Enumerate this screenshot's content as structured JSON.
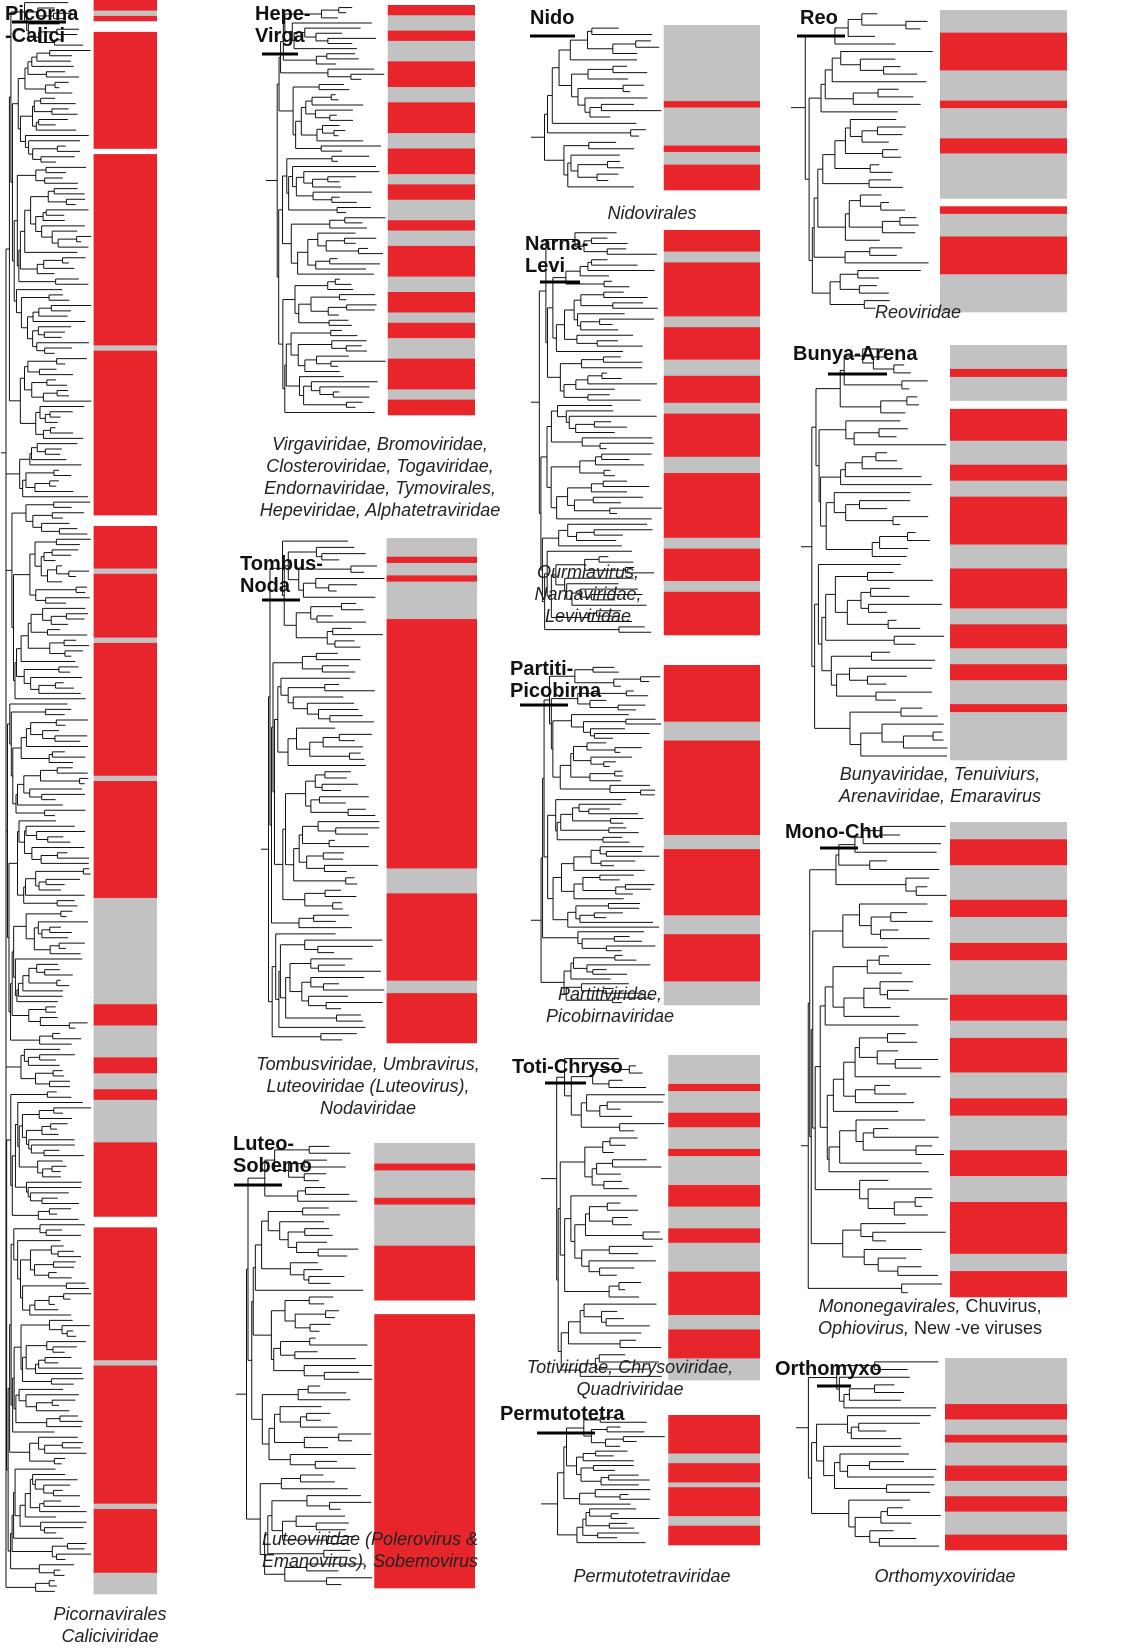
{
  "colors": {
    "red": "#e8252b",
    "gray": "#c2c2c2",
    "white": "#ffffff",
    "line": "#111111"
  },
  "panels": [
    {
      "id": "picorna",
      "title": [
        "Picorna",
        "-Calici"
      ],
      "caption": [
        [
          "Picornavirales"
        ],
        [
          "Caliciviridae"
        ]
      ],
      "pattern": [
        [
          "r",
          2
        ],
        [
          "g",
          1
        ],
        [
          "r",
          1
        ],
        [
          "w",
          2
        ],
        [
          "r",
          22
        ],
        [
          "w",
          1
        ],
        [
          "r",
          36
        ],
        [
          "g",
          1
        ],
        [
          "r",
          31
        ],
        [
          "w",
          2
        ],
        [
          "r",
          8
        ],
        [
          "g",
          1
        ],
        [
          "r",
          12
        ],
        [
          "g",
          1
        ],
        [
          "r",
          25
        ],
        [
          "g",
          1
        ],
        [
          "r",
          22
        ],
        [
          "g",
          20
        ],
        [
          "r",
          4
        ],
        [
          "g",
          6
        ],
        [
          "r",
          3
        ],
        [
          "g",
          3
        ],
        [
          "r",
          2
        ],
        [
          "g",
          8
        ],
        [
          "r",
          14
        ],
        [
          "w",
          2
        ],
        [
          "r",
          25
        ],
        [
          "g",
          1
        ],
        [
          "r",
          26
        ],
        [
          "g",
          1
        ],
        [
          "r",
          12
        ],
        [
          "g",
          4
        ]
      ]
    },
    {
      "id": "hepe",
      "title": [
        "Hepe-",
        "Virga"
      ],
      "caption": [
        [
          "Virgaviridae, Bromoviridae,"
        ],
        [
          "Closteroviridae, Togaviridae,"
        ],
        [
          "Endornaviridae, Tymovirales,"
        ],
        [
          "Hepeviridae, Alphatetraviridae"
        ]
      ],
      "pattern": [
        [
          "r",
          2
        ],
        [
          "g",
          3
        ],
        [
          "r",
          2
        ],
        [
          "g",
          4
        ],
        [
          "r",
          5
        ],
        [
          "g",
          3
        ],
        [
          "r",
          6
        ],
        [
          "g",
          3
        ],
        [
          "r",
          5
        ],
        [
          "g",
          2
        ],
        [
          "r",
          3
        ],
        [
          "g",
          4
        ],
        [
          "r",
          2
        ],
        [
          "g",
          3
        ],
        [
          "r",
          6
        ],
        [
          "g",
          3
        ],
        [
          "r",
          4
        ],
        [
          "g",
          2
        ],
        [
          "r",
          3
        ],
        [
          "g",
          4
        ],
        [
          "r",
          6
        ],
        [
          "g",
          2
        ],
        [
          "r",
          3
        ]
      ]
    },
    {
      "id": "tombus",
      "title": [
        "Tombus-",
        "Noda"
      ],
      "caption": [
        [
          "Tombusviridae, Umbravirus,"
        ],
        [
          "Luteoviridae (Luteovirus),"
        ],
        [
          "Nodaviridae"
        ]
      ],
      "pattern": [
        [
          "g",
          3
        ],
        [
          "r",
          1
        ],
        [
          "g",
          2
        ],
        [
          "r",
          1
        ],
        [
          "g",
          6
        ],
        [
          "r",
          40
        ],
        [
          "g",
          4
        ],
        [
          "r",
          14
        ],
        [
          "g",
          2
        ],
        [
          "r",
          8
        ]
      ]
    },
    {
      "id": "luteo",
      "title": [
        "Luteo-",
        "Sobemo"
      ],
      "caption": [
        [
          "Luteoviridae (Polerovirus &"
        ],
        [
          "Emanovirus), Sobemovirus"
        ]
      ],
      "pattern": [
        [
          "g",
          3
        ],
        [
          "r",
          1
        ],
        [
          "g",
          4
        ],
        [
          "r",
          1
        ],
        [
          "g",
          6
        ],
        [
          "r",
          8
        ],
        [
          "w",
          2
        ],
        [
          "r",
          40
        ]
      ]
    },
    {
      "id": "nido",
      "title": [
        "Nido"
      ],
      "caption": [
        [
          "Nidovirales"
        ]
      ],
      "pattern": [
        [
          "g",
          12
        ],
        [
          "r",
          1
        ],
        [
          "g",
          6
        ],
        [
          "r",
          1
        ],
        [
          "g",
          2
        ],
        [
          "r",
          4
        ]
      ]
    },
    {
      "id": "narna",
      "title": [
        "Narna-",
        "Levi"
      ],
      "caption": [
        [
          "Ourmiavirus,"
        ],
        [
          "Narnaviridae,"
        ],
        [
          "Leviviridae"
        ]
      ],
      "pattern": [
        [
          "r",
          4
        ],
        [
          "g",
          2
        ],
        [
          "r",
          10
        ],
        [
          "g",
          2
        ],
        [
          "r",
          6
        ],
        [
          "g",
          3
        ],
        [
          "r",
          5
        ],
        [
          "g",
          2
        ],
        [
          "r",
          8
        ],
        [
          "g",
          3
        ],
        [
          "r",
          12
        ],
        [
          "g",
          2
        ],
        [
          "r",
          6
        ],
        [
          "g",
          2
        ],
        [
          "r",
          8
        ]
      ]
    },
    {
      "id": "partiti",
      "title": [
        "Partiti-",
        "Picobirna"
      ],
      "caption": [
        [
          "Partitiviridae,"
        ],
        [
          "Picobirnaviridae"
        ]
      ],
      "pattern": [
        [
          "r",
          12
        ],
        [
          "g",
          4
        ],
        [
          "r",
          20
        ],
        [
          "g",
          3
        ],
        [
          "r",
          14
        ],
        [
          "g",
          4
        ],
        [
          "r",
          10
        ],
        [
          "g",
          5
        ]
      ]
    },
    {
      "id": "toti",
      "title": [
        "Toti-Chryso"
      ],
      "caption": [
        [
          "Totiviridae, Chrysoviridae,"
        ],
        [
          "Quadriviridae"
        ]
      ],
      "pattern": [
        [
          "g",
          4
        ],
        [
          "r",
          1
        ],
        [
          "g",
          3
        ],
        [
          "r",
          2
        ],
        [
          "g",
          3
        ],
        [
          "r",
          1
        ],
        [
          "g",
          4
        ],
        [
          "r",
          3
        ],
        [
          "g",
          3
        ],
        [
          "r",
          2
        ],
        [
          "g",
          4
        ],
        [
          "r",
          6
        ],
        [
          "g",
          2
        ],
        [
          "r",
          4
        ],
        [
          "g",
          3
        ]
      ]
    },
    {
      "id": "permuto",
      "title": [
        "Permutotetra"
      ],
      "caption": [
        [
          "Permutotetraviridae"
        ]
      ],
      "pattern": [
        [
          "r",
          8
        ],
        [
          "g",
          2
        ],
        [
          "r",
          4
        ],
        [
          "g",
          1
        ],
        [
          "r",
          6
        ],
        [
          "g",
          2
        ],
        [
          "r",
          4
        ]
      ]
    },
    {
      "id": "reo",
      "title": [
        "Reo"
      ],
      "caption": [
        [
          "Reoviridae"
        ]
      ],
      "pattern": [
        [
          "g",
          3
        ],
        [
          "r",
          5
        ],
        [
          "g",
          4
        ],
        [
          "r",
          1
        ],
        [
          "g",
          4
        ],
        [
          "r",
          2
        ],
        [
          "g",
          6
        ],
        [
          "w",
          1
        ],
        [
          "r",
          1
        ],
        [
          "g",
          3
        ],
        [
          "r",
          5
        ],
        [
          "g",
          5
        ]
      ]
    },
    {
      "id": "bunya",
      "title": [
        "Bunya-Arena"
      ],
      "caption": [
        [
          "Bunyaviridae, Tenuiviurs,"
        ],
        [
          "Arenaviridae, Emaravirus"
        ]
      ],
      "pattern": [
        [
          "g",
          3
        ],
        [
          "r",
          1
        ],
        [
          "g",
          3
        ],
        [
          "w",
          1
        ],
        [
          "r",
          4
        ],
        [
          "g",
          3
        ],
        [
          "r",
          2
        ],
        [
          "g",
          2
        ],
        [
          "r",
          6
        ],
        [
          "g",
          3
        ],
        [
          "r",
          5
        ],
        [
          "g",
          2
        ],
        [
          "r",
          3
        ],
        [
          "g",
          2
        ],
        [
          "r",
          2
        ],
        [
          "g",
          3
        ],
        [
          "r",
          1
        ],
        [
          "g",
          6
        ]
      ]
    },
    {
      "id": "mono",
      "title": [
        "Mono-Chu"
      ],
      "caption": [
        [
          "Mononegavirales,",
          " Chuvirus,"
        ],
        [
          "Ophiovirus,",
          " New -ve viruses"
        ]
      ],
      "pattern": [
        [
          "g",
          2
        ],
        [
          "r",
          3
        ],
        [
          "g",
          4
        ],
        [
          "r",
          2
        ],
        [
          "g",
          3
        ],
        [
          "r",
          2
        ],
        [
          "g",
          4
        ],
        [
          "r",
          3
        ],
        [
          "g",
          2
        ],
        [
          "r",
          4
        ],
        [
          "g",
          3
        ],
        [
          "r",
          2
        ],
        [
          "g",
          4
        ],
        [
          "r",
          3
        ],
        [
          "g",
          3
        ],
        [
          "r",
          6
        ],
        [
          "g",
          2
        ],
        [
          "r",
          3
        ]
      ]
    },
    {
      "id": "orthomyxo",
      "title": [
        "Orthomyxo"
      ],
      "caption": [
        [
          "Orthomyxoviridae"
        ]
      ],
      "pattern": [
        [
          "g",
          6
        ],
        [
          "r",
          2
        ],
        [
          "g",
          2
        ],
        [
          "r",
          1
        ],
        [
          "g",
          3
        ],
        [
          "r",
          2
        ],
        [
          "g",
          2
        ],
        [
          "r",
          2
        ],
        [
          "g",
          3
        ],
        [
          "r",
          2
        ]
      ]
    }
  ]
}
